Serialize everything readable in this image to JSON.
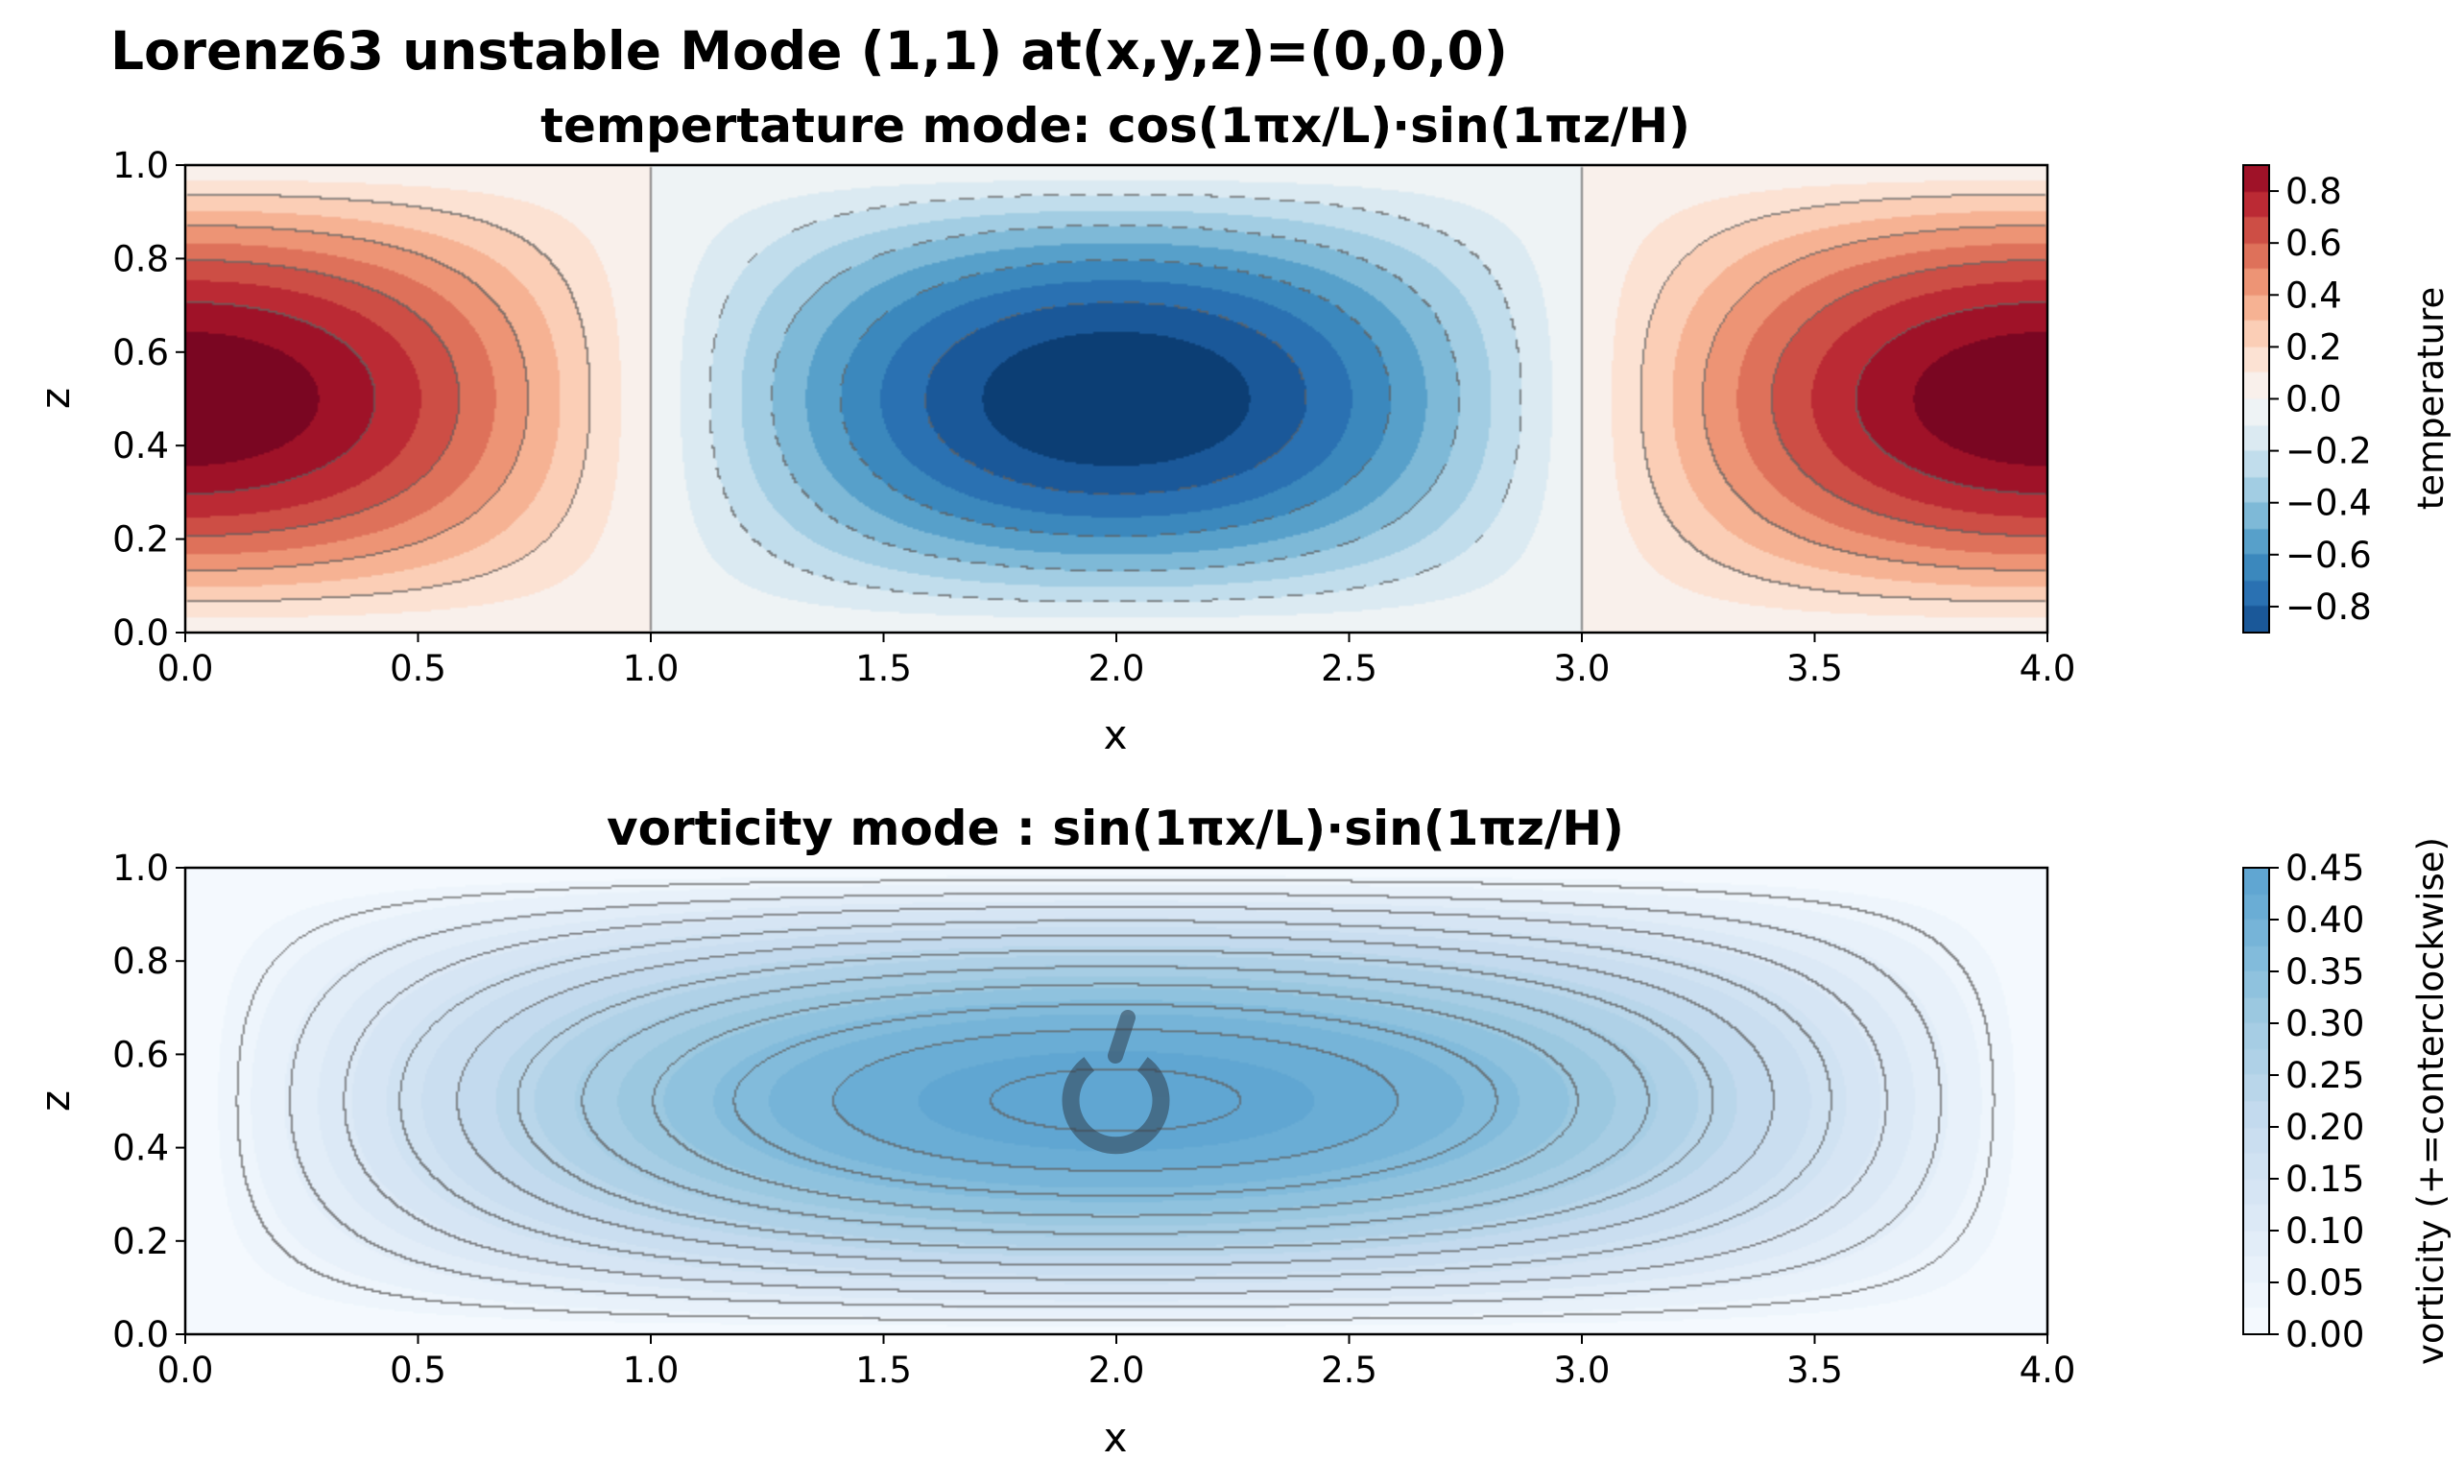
{
  "figure": {
    "suptitle": "Lorenz63 unstable Mode (1,1) at(x,y,z)=(0,0,0)"
  },
  "chart_data": [
    {
      "type": "heatmap",
      "title": "tempertature mode: cos(1πx/L)·sin(1πz/H)",
      "xlabel": "x",
      "ylabel": "z",
      "function": "cos(pi*x/2)*sin(pi*z)",
      "xlim": [
        0,
        4
      ],
      "ylim": [
        0,
        1
      ],
      "xticks": [
        "0.0",
        "0.5",
        "1.0",
        "1.5",
        "2.0",
        "2.5",
        "3.0",
        "3.5",
        "4.0"
      ],
      "yticks": [
        "0.0",
        "0.2",
        "0.4",
        "0.6",
        "0.8",
        "1.0"
      ],
      "colormap": "RdBu_r",
      "levels": [
        -1.0,
        -0.9,
        -0.8,
        -0.7,
        -0.6,
        -0.5,
        -0.4,
        -0.3,
        -0.2,
        -0.1,
        0.0,
        0.1,
        0.2,
        0.3,
        0.4,
        0.5,
        0.6,
        0.7,
        0.8,
        0.9,
        1.0
      ],
      "contour_lines": [
        -0.8,
        -0.6,
        -0.4,
        -0.2,
        0.0,
        0.2,
        0.4,
        0.6,
        0.8
      ],
      "colorbar": {
        "label": "temperature",
        "range": [
          -0.9,
          0.9
        ],
        "ticks": [
          "0.8",
          "0.6",
          "0.4",
          "0.2",
          "0.0",
          "−0.2",
          "−0.4",
          "−0.6",
          "−0.8"
        ],
        "tick_values": [
          0.8,
          0.6,
          0.4,
          0.2,
          0.0,
          -0.2,
          -0.4,
          -0.6,
          -0.8
        ]
      }
    },
    {
      "type": "heatmap",
      "title": "vorticity mode : sin(1πx/L)·sin(1πz/H)",
      "xlabel": "x",
      "ylabel": "z",
      "function": "0.45*sin(pi*x/4)*sin(pi*z)",
      "xlim": [
        0,
        4
      ],
      "ylim": [
        0,
        1
      ],
      "xticks": [
        "0.0",
        "0.5",
        "1.0",
        "1.5",
        "2.0",
        "2.5",
        "3.0",
        "3.5",
        "4.0"
      ],
      "yticks": [
        "0.0",
        "0.2",
        "0.4",
        "0.6",
        "0.8",
        "1.0"
      ],
      "colormap": "Blues",
      "levels": [
        0,
        0.025,
        0.05,
        0.075,
        0.1,
        0.125,
        0.15,
        0.175,
        0.2,
        0.225,
        0.25,
        0.275,
        0.3,
        0.325,
        0.35,
        0.375,
        0.4,
        0.425,
        0.45
      ],
      "contour_lines": [
        0.04,
        0.08,
        0.12,
        0.16,
        0.2,
        0.24,
        0.28,
        0.32,
        0.36,
        0.4,
        0.44
      ],
      "marker": "counterclockwise-rotation",
      "colorbar": {
        "label": "vorticity (+=conterclockwise)",
        "range": [
          0,
          0.45
        ],
        "ticks": [
          "0.45",
          "0.40",
          "0.35",
          "0.30",
          "0.25",
          "0.20",
          "0.15",
          "0.10",
          "0.05",
          "0.00"
        ],
        "tick_values": [
          0.45,
          0.4,
          0.35,
          0.3,
          0.25,
          0.2,
          0.15,
          0.1,
          0.05,
          0.0
        ]
      }
    }
  ]
}
